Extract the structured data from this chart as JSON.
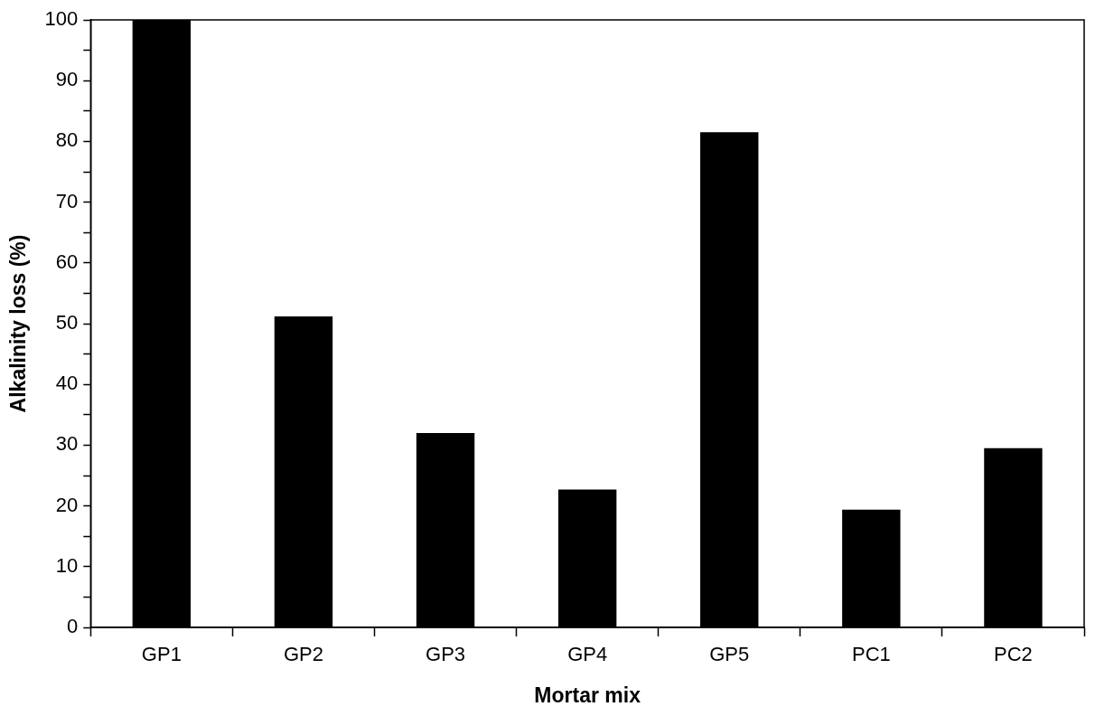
{
  "chart_data": {
    "type": "bar",
    "xlabel": "Mortar mix",
    "ylabel": "Alkalinity loss (%)",
    "categories": [
      "GP1",
      "GP2",
      "GP3",
      "GP4",
      "GP5",
      "PC1",
      "PC2"
    ],
    "values": [
      100,
      51.2,
      32.0,
      22.7,
      81.5,
      19.4,
      29.5
    ],
    "color": "#000000",
    "ylim": [
      0,
      100
    ],
    "yticks": [
      0,
      {
        "value": 5,
        "label": null
      },
      10,
      {
        "value": 15,
        "label": null
      },
      20,
      {
        "value": 25,
        "label": null
      },
      30,
      {
        "value": 35,
        "label": null
      },
      40,
      {
        "value": 45,
        "label": null
      },
      50,
      {
        "value": 55,
        "label": null
      },
      60,
      {
        "value": 65,
        "label": null
      },
      70,
      {
        "value": 75,
        "label": null
      },
      80,
      {
        "value": 85,
        "label": null
      },
      90,
      {
        "value": 95,
        "label": null
      },
      100
    ]
  }
}
